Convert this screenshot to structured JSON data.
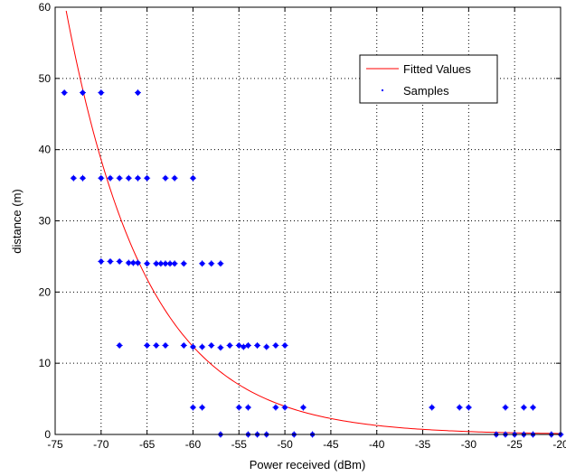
{
  "chart_data": {
    "type": "scatter",
    "xlabel": "Power received (dBm)",
    "ylabel": "distance (m)",
    "xlim": [
      -75,
      -20
    ],
    "ylim": [
      0,
      60
    ],
    "xticks": [
      -75,
      -70,
      -65,
      -60,
      -55,
      -50,
      -45,
      -40,
      -35,
      -30,
      -25,
      -20
    ],
    "yticks": [
      0,
      10,
      20,
      30,
      40,
      50,
      60
    ],
    "grid": true,
    "legend_position": "top-right",
    "legend": [
      "Fitted Values",
      "Samples"
    ],
    "colors": {
      "fit": "#ff0000",
      "samples": "#0000ff"
    },
    "series": [
      {
        "name": "Fitted Values",
        "kind": "line",
        "model": {
          "form": "exponential",
          "a": 0.0133,
          "b": -0.1139
        },
        "x_range": [
          -73.8,
          -20
        ]
      },
      {
        "name": "Samples",
        "kind": "scatter",
        "points": [
          [
            -74,
            48
          ],
          [
            -72,
            48
          ],
          [
            -70,
            48
          ],
          [
            -66,
            48
          ],
          [
            -73,
            36
          ],
          [
            -72,
            36
          ],
          [
            -70,
            36
          ],
          [
            -69,
            36
          ],
          [
            -68,
            36
          ],
          [
            -67,
            36
          ],
          [
            -66,
            36
          ],
          [
            -65,
            36
          ],
          [
            -63,
            36
          ],
          [
            -62,
            36
          ],
          [
            -60,
            36
          ],
          [
            -70,
            24.3
          ],
          [
            -69,
            24.3
          ],
          [
            -68,
            24.3
          ],
          [
            -67,
            24.1
          ],
          [
            -66.5,
            24.1
          ],
          [
            -66,
            24.1
          ],
          [
            -65,
            24
          ],
          [
            -64,
            24
          ],
          [
            -63.5,
            24
          ],
          [
            -63,
            24
          ],
          [
            -62.5,
            24
          ],
          [
            -62,
            24
          ],
          [
            -61,
            24
          ],
          [
            -59,
            24
          ],
          [
            -58,
            24
          ],
          [
            -57,
            24
          ],
          [
            -68,
            12.5
          ],
          [
            -65,
            12.5
          ],
          [
            -64,
            12.5
          ],
          [
            -63,
            12.5
          ],
          [
            -61,
            12.5
          ],
          [
            -60,
            12.3
          ],
          [
            -59,
            12.3
          ],
          [
            -58,
            12.5
          ],
          [
            -57,
            12.2
          ],
          [
            -56,
            12.5
          ],
          [
            -55,
            12.5
          ],
          [
            -54.5,
            12.3
          ],
          [
            -54,
            12.5
          ],
          [
            -53,
            12.5
          ],
          [
            -52,
            12.3
          ],
          [
            -51,
            12.5
          ],
          [
            -50,
            12.5
          ],
          [
            -60,
            3.8
          ],
          [
            -59,
            3.8
          ],
          [
            -55,
            3.8
          ],
          [
            -54,
            3.8
          ],
          [
            -51,
            3.8
          ],
          [
            -50,
            3.8
          ],
          [
            -48,
            3.8
          ],
          [
            -34,
            3.8
          ],
          [
            -31,
            3.8
          ],
          [
            -30,
            3.8
          ],
          [
            -26,
            3.8
          ],
          [
            -24,
            3.8
          ],
          [
            -23,
            3.8
          ],
          [
            -57,
            0
          ],
          [
            -54,
            0
          ],
          [
            -53,
            0
          ],
          [
            -52,
            0
          ],
          [
            -49,
            0
          ],
          [
            -47,
            0
          ],
          [
            -27,
            0
          ],
          [
            -26,
            0
          ],
          [
            -25,
            0
          ],
          [
            -24,
            0
          ],
          [
            -23,
            0
          ],
          [
            -21,
            0
          ],
          [
            -20,
            0
          ]
        ]
      }
    ]
  }
}
